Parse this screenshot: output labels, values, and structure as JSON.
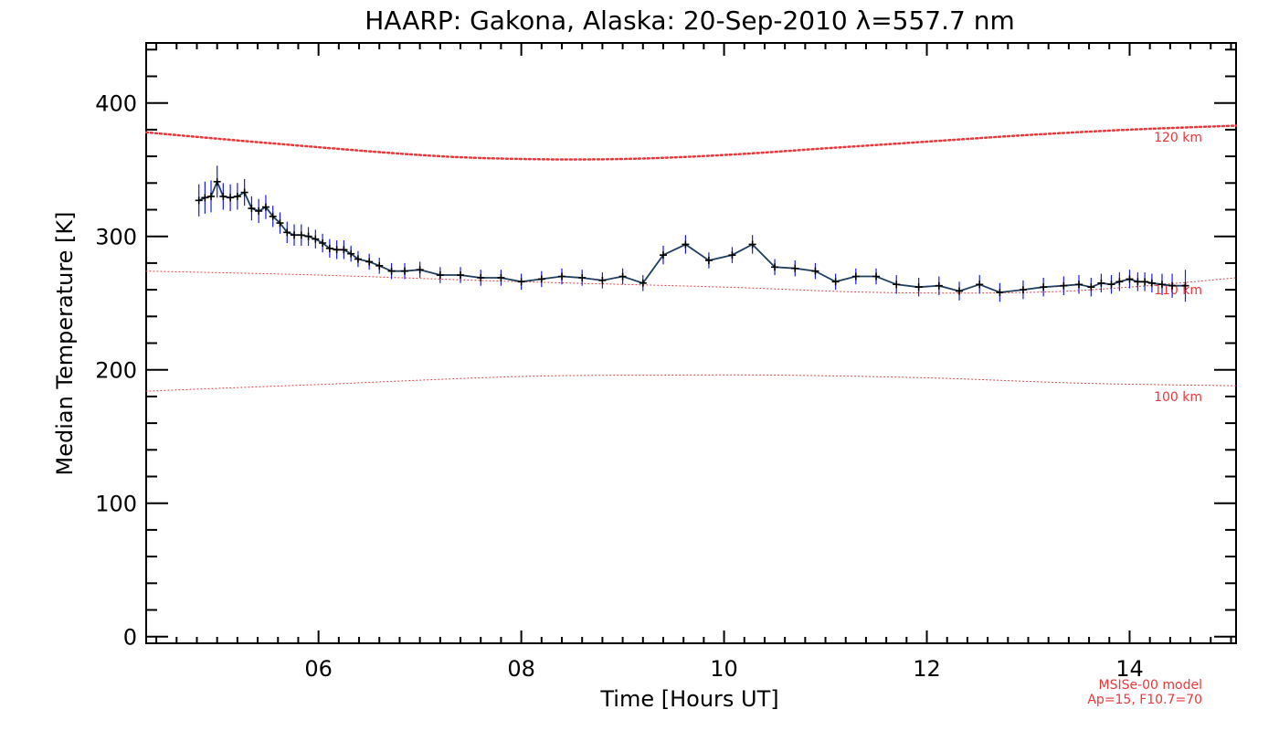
{
  "chart_data": {
    "type": "line",
    "title": "HAARP: Gakona,  Alaska: 20-Sep-2010 λ=557.7 nm",
    "xlabel": "Time [Hours UT]",
    "ylabel": "Median Temperature [K]",
    "xlim": [
      4.3,
      15.05
    ],
    "ylim": [
      -5,
      445
    ],
    "xticks": [
      {
        "value": 6,
        "label": "06"
      },
      {
        "value": 8,
        "label": "08"
      },
      {
        "value": 10,
        "label": "10"
      },
      {
        "value": 12,
        "label": "12"
      },
      {
        "value": 14,
        "label": "14"
      }
    ],
    "yticks": [
      {
        "value": 0,
        "label": "0"
      },
      {
        "value": 100,
        "label": "100"
      },
      {
        "value": 200,
        "label": "200"
      },
      {
        "value": 300,
        "label": "300"
      },
      {
        "value": 400,
        "label": "400"
      }
    ],
    "grid": false,
    "model_note": [
      "MSISe-00 model",
      "Ap=15, F10.7=70"
    ],
    "colors": {
      "measurement_line": "#1f3f60",
      "error_bars": "#1a1ae6",
      "markers": "#000000",
      "model_curves": "#e8383c"
    },
    "series": [
      {
        "kind": "measurement",
        "x": [
          4.82,
          4.88,
          4.94,
          5.0,
          5.06,
          5.13,
          5.2,
          5.27,
          5.34,
          5.41,
          5.48,
          5.55,
          5.62,
          5.69,
          5.76,
          5.83,
          5.9,
          5.97,
          6.04,
          6.11,
          6.18,
          6.25,
          6.32,
          6.39,
          6.5,
          6.6,
          6.72,
          6.85,
          7.0,
          7.2,
          7.4,
          7.6,
          7.8,
          8.0,
          8.2,
          8.4,
          8.6,
          8.8,
          9.0,
          9.2,
          9.4,
          9.62,
          9.85,
          10.08,
          10.28,
          10.5,
          10.7,
          10.9,
          11.1,
          11.3,
          11.5,
          11.7,
          11.92,
          12.12,
          12.32,
          12.52,
          12.72,
          12.95,
          13.15,
          13.35,
          13.5,
          13.62,
          13.72,
          13.82,
          13.9,
          14.0,
          14.08,
          14.15,
          14.22,
          14.32,
          14.42,
          14.55
        ],
        "y": [
          327,
          329,
          330,
          341,
          330,
          329,
          330,
          333,
          321,
          319,
          322,
          315,
          310,
          303,
          301,
          301,
          300,
          298,
          295,
          291,
          290,
          290,
          287,
          283,
          281,
          278,
          274,
          274,
          275,
          271,
          271,
          269,
          269,
          266,
          268,
          270,
          269,
          267,
          270,
          265,
          286,
          294,
          282,
          286,
          294,
          277,
          276,
          274,
          266,
          270,
          270,
          264,
          262,
          263,
          259,
          264,
          258,
          260,
          262,
          263,
          264,
          262,
          265,
          264,
          266,
          268,
          266,
          266,
          265,
          264,
          263,
          263
        ],
        "error": [
          12,
          12,
          12,
          12,
          10,
          10,
          10,
          10,
          9,
          9,
          9,
          8,
          8,
          8,
          8,
          8,
          7,
          7,
          7,
          7,
          7,
          7,
          6,
          6,
          6,
          6,
          6,
          6,
          6,
          6,
          6,
          6,
          6,
          6,
          6,
          6,
          6,
          6,
          6,
          6,
          7,
          7,
          6,
          6,
          7,
          6,
          6,
          6,
          6,
          6,
          6,
          7,
          7,
          7,
          7,
          7,
          7,
          7,
          7,
          7,
          7,
          7,
          7,
          7,
          7,
          7,
          7,
          7,
          7,
          8,
          9,
          12
        ]
      },
      {
        "kind": "model",
        "name": "120 km",
        "x": [
          4.3,
          5.5,
          7.0,
          8.0,
          9.0,
          10.0,
          11.0,
          12.0,
          13.0,
          14.0,
          15.05
        ],
        "y": [
          378,
          370,
          361,
          358,
          358,
          361,
          366,
          371,
          376,
          380,
          383
        ],
        "width": 2.5
      },
      {
        "kind": "model",
        "name": "110 km",
        "x": [
          4.3,
          6.0,
          8.0,
          10.0,
          11.5,
          13.0,
          14.0,
          15.05
        ],
        "y": [
          274,
          271,
          266,
          262,
          258,
          258,
          262,
          269
        ],
        "width": 1
      },
      {
        "kind": "model",
        "name": "100 km",
        "x": [
          4.3,
          6.0,
          8.0,
          9.5,
          10.5,
          12.0,
          13.5,
          15.05
        ],
        "y": [
          184,
          189,
          195,
          196,
          196,
          194,
          190,
          188
        ],
        "width": 1
      }
    ]
  }
}
